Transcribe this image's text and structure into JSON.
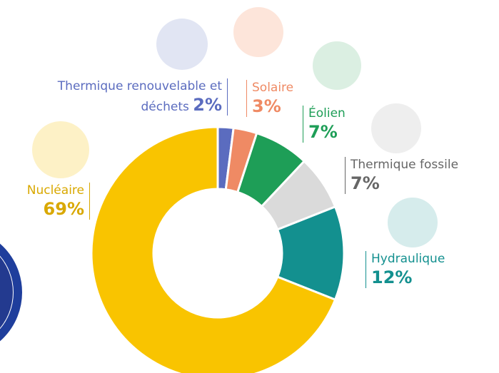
{
  "chart_data": {
    "type": "donut",
    "categories": [
      "Thermique renouvelable et déchets",
      "Solaire",
      "Éolien",
      "Thermique fossile",
      "Hydraulique",
      "Nucléaire"
    ],
    "values": [
      2,
      3,
      7,
      7,
      12,
      69
    ],
    "value_labels": [
      "2%",
      "3%",
      "7%",
      "7%",
      "12%",
      "69%"
    ],
    "colors": [
      "#5b6cbf",
      "#ef8a64",
      "#1e9e57",
      "#dadada",
      "#13908f",
      "#f9c400"
    ]
  }
}
